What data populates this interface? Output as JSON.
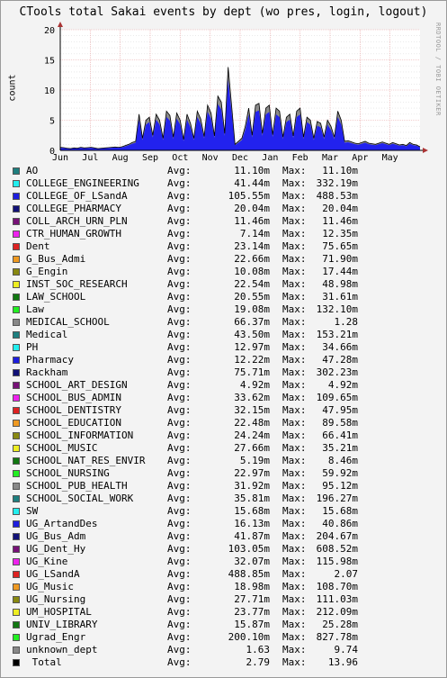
{
  "title": "CTools total Sakai events by dept (wo pres, login, logout)",
  "watermark": "RRDTOOL / TOBI OETIKER",
  "chart_data": {
    "type": "area",
    "title": "CTools total Sakai events by dept (wo pres, login, logout)",
    "ylabel": "count",
    "ylim": [
      0,
      20
    ],
    "yticks": [
      0,
      5,
      10,
      15,
      20
    ],
    "xticks": [
      "Jun",
      "Jul",
      "Aug",
      "Sep",
      "Oct",
      "Nov",
      "Dec",
      "Jan",
      "Feb",
      "Mar",
      "Apr",
      "May"
    ],
    "grid": true,
    "stacked": true,
    "series": [
      {
        "name": "MEDICAL_SCHOOL",
        "color": "#8a8a8a",
        "role": "gray stacked top",
        "profile": [
          0.5,
          0.45,
          0.35,
          0.3,
          0.4,
          0.35,
          0.5,
          0.4,
          0.45,
          0.5,
          0.4,
          0.3,
          0.35,
          0.4,
          0.45,
          0.5,
          0.55,
          0.5,
          0.6,
          0.8,
          1.0,
          1.3,
          1.5,
          6.0,
          2.0,
          5.0,
          5.5,
          2.5,
          6.0,
          5.0,
          2.0,
          6.5,
          5.8,
          2.2,
          6.2,
          5.0,
          1.8,
          6.0,
          4.5,
          2.0,
          6.5,
          5.2,
          2.3,
          7.5,
          6.2,
          2.4,
          9.0,
          8.0,
          2.8,
          13.8,
          7.5,
          1.0,
          1.5,
          2.0,
          4.0,
          7.0,
          2.5,
          7.5,
          7.8,
          2.8,
          7.0,
          7.5,
          2.6,
          7.0,
          6.5,
          2.2,
          5.5,
          6.0,
          2.4,
          6.5,
          7.0,
          2.2,
          5.5,
          5.0,
          2.0,
          4.8,
          4.5,
          2.2,
          5.0,
          4.0,
          2.2,
          6.5,
          5.0,
          1.5,
          1.6,
          1.4,
          1.2,
          1.1,
          1.3,
          1.5,
          1.2,
          1.1,
          1.0,
          1.2,
          1.4,
          1.2,
          1.0,
          1.3,
          1.1,
          0.9,
          1.0,
          0.8,
          1.3,
          1.0,
          0.9,
          0.6
        ]
      },
      {
        "name": "Medical",
        "color": "#1e7f7f",
        "role": "teal band",
        "fraction": 0.25
      },
      {
        "name": "Law",
        "color": "#22dd22",
        "role": "green band",
        "fraction": 0.45
      },
      {
        "name": "UG_LSandA",
        "color": "#ee2222",
        "role": "red band",
        "fraction": 0.65
      },
      {
        "name": "COLLEGE_OF_LSandA",
        "color": "#2222ee",
        "role": "blue band",
        "fraction": 0.85
      }
    ]
  },
  "legend": [
    {
      "name": "AO",
      "color": "#1e7f7f",
      "avg_label": "Avg:",
      "avg": "11.10m",
      "max_label": "Max:",
      "max": "11.10m"
    },
    {
      "name": "COLLEGE_ENGINEERING",
      "color": "#22eeee",
      "avg_label": "Avg:",
      "avg": "41.44m",
      "max_label": "Max:",
      "max": "332.19m"
    },
    {
      "name": "COLLEGE_OF_LSandA",
      "color": "#1e1ede",
      "avg_label": "Avg:",
      "avg": "105.55m",
      "max_label": "Max:",
      "max": "488.53m"
    },
    {
      "name": "COLLEGE_PHARMACY",
      "color": "#111177",
      "avg_label": "Avg:",
      "avg": "20.04m",
      "max_label": "Max:",
      "max": "20.04m"
    },
    {
      "name": "COLL_ARCH_URN_PLN",
      "color": "#771177",
      "avg_label": "Avg:",
      "avg": "11.46m",
      "max_label": "Max:",
      "max": "11.46m"
    },
    {
      "name": "CTR_HUMAN_GROWTH",
      "color": "#ee22ee",
      "avg_label": "Avg:",
      "avg": "7.14m",
      "max_label": "Max:",
      "max": "12.35m"
    },
    {
      "name": "Dent",
      "color": "#dd2222",
      "avg_label": "Avg:",
      "avg": "23.14m",
      "max_label": "Max:",
      "max": "75.65m"
    },
    {
      "name": "G_Bus_Admi",
      "color": "#ee9922",
      "avg_label": "Avg:",
      "avg": "22.66m",
      "max_label": "Max:",
      "max": "71.90m"
    },
    {
      "name": "G_Engin",
      "color": "#888811",
      "avg_label": "Avg:",
      "avg": "10.08m",
      "max_label": "Max:",
      "max": "17.44m"
    },
    {
      "name": "INST_SOC_RESEARCH",
      "color": "#eeee22",
      "avg_label": "Avg:",
      "avg": "22.54m",
      "max_label": "Max:",
      "max": "48.98m"
    },
    {
      "name": "LAW_SCHOOL",
      "color": "#117711",
      "avg_label": "Avg:",
      "avg": "20.55m",
      "max_label": "Max:",
      "max": "31.61m"
    },
    {
      "name": "Law",
      "color": "#22ee22",
      "avg_label": "Avg:",
      "avg": "19.08m",
      "max_label": "Max:",
      "max": "132.10m"
    },
    {
      "name": "MEDICAL_SCHOOL",
      "color": "#888888",
      "avg_label": "Avg:",
      "avg": "66.37m",
      "max_label": "Max:",
      "max": "1.28"
    },
    {
      "name": "Medical",
      "color": "#1e7f7f",
      "avg_label": "Avg:",
      "avg": "43.50m",
      "max_label": "Max:",
      "max": "153.21m"
    },
    {
      "name": "PH",
      "color": "#22eeee",
      "avg_label": "Avg:",
      "avg": "12.97m",
      "max_label": "Max:",
      "max": "34.66m"
    },
    {
      "name": "Pharmacy",
      "color": "#1e1ede",
      "avg_label": "Avg:",
      "avg": "12.22m",
      "max_label": "Max:",
      "max": "47.28m"
    },
    {
      "name": "Rackham",
      "color": "#111177",
      "avg_label": "Avg:",
      "avg": "75.71m",
      "max_label": "Max:",
      "max": "302.23m"
    },
    {
      "name": "SCHOOL_ART_DESIGN",
      "color": "#771177",
      "avg_label": "Avg:",
      "avg": "4.92m",
      "max_label": "Max:",
      "max": "4.92m"
    },
    {
      "name": "SCHOOL_BUS_ADMIN",
      "color": "#ee22ee",
      "avg_label": "Avg:",
      "avg": "33.62m",
      "max_label": "Max:",
      "max": "109.65m"
    },
    {
      "name": "SCHOOL_DENTISTRY",
      "color": "#dd2222",
      "avg_label": "Avg:",
      "avg": "32.15m",
      "max_label": "Max:",
      "max": "47.95m"
    },
    {
      "name": "SCHOOL_EDUCATION",
      "color": "#ee9922",
      "avg_label": "Avg:",
      "avg": "22.48m",
      "max_label": "Max:",
      "max": "89.58m"
    },
    {
      "name": "SCHOOL_INFORMATION",
      "color": "#888811",
      "avg_label": "Avg:",
      "avg": "24.24m",
      "max_label": "Max:",
      "max": "66.41m"
    },
    {
      "name": "SCHOOL_MUSIC",
      "color": "#eeee22",
      "avg_label": "Avg:",
      "avg": "27.66m",
      "max_label": "Max:",
      "max": "35.21m"
    },
    {
      "name": "SCHOOL_NAT_RES_ENVIR",
      "color": "#117711",
      "avg_label": "Avg:",
      "avg": "5.19m",
      "max_label": "Max:",
      "max": "8.46m"
    },
    {
      "name": "SCHOOL_NURSING",
      "color": "#22ee22",
      "avg_label": "Avg:",
      "avg": "22.97m",
      "max_label": "Max:",
      "max": "59.92m"
    },
    {
      "name": "SCHOOL_PUB_HEALTH",
      "color": "#888888",
      "avg_label": "Avg:",
      "avg": "31.92m",
      "max_label": "Max:",
      "max": "95.12m"
    },
    {
      "name": "SCHOOL_SOCIAL_WORK",
      "color": "#1e7f7f",
      "avg_label": "Avg:",
      "avg": "35.81m",
      "max_label": "Max:",
      "max": "196.27m"
    },
    {
      "name": "SW",
      "color": "#22eeee",
      "avg_label": "Avg:",
      "avg": "15.68m",
      "max_label": "Max:",
      "max": "15.68m"
    },
    {
      "name": "UG_ArtandDes",
      "color": "#1e1ede",
      "avg_label": "Avg:",
      "avg": "16.13m",
      "max_label": "Max:",
      "max": "40.86m"
    },
    {
      "name": "UG_Bus_Adm",
      "color": "#111177",
      "avg_label": "Avg:",
      "avg": "41.87m",
      "max_label": "Max:",
      "max": "204.67m"
    },
    {
      "name": "UG_Dent_Hy",
      "color": "#771177",
      "avg_label": "Avg:",
      "avg": "103.05m",
      "max_label": "Max:",
      "max": "608.52m"
    },
    {
      "name": "UG_Kine",
      "color": "#ee22ee",
      "avg_label": "Avg:",
      "avg": "32.07m",
      "max_label": "Max:",
      "max": "115.98m"
    },
    {
      "name": "UG_LSandA",
      "color": "#dd2222",
      "avg_label": "Avg:",
      "avg": "488.85m",
      "max_label": "Max:",
      "max": "2.07"
    },
    {
      "name": "UG_Music",
      "color": "#ee9922",
      "avg_label": "Avg:",
      "avg": "18.98m",
      "max_label": "Max:",
      "max": "108.70m"
    },
    {
      "name": "UG_Nursing",
      "color": "#888811",
      "avg_label": "Avg:",
      "avg": "27.71m",
      "max_label": "Max:",
      "max": "111.03m"
    },
    {
      "name": "UM_HOSPITAL",
      "color": "#eeee22",
      "avg_label": "Avg:",
      "avg": "23.77m",
      "max_label": "Max:",
      "max": "212.09m"
    },
    {
      "name": "UNIV_LIBRARY",
      "color": "#117711",
      "avg_label": "Avg:",
      "avg": "15.87m",
      "max_label": "Max:",
      "max": "25.28m"
    },
    {
      "name": "Ugrad_Engr",
      "color": "#22ee22",
      "avg_label": "Avg:",
      "avg": "200.10m",
      "max_label": "Max:",
      "max": "827.78m"
    },
    {
      "name": "unknown_dept",
      "color": "#888888",
      "avg_label": "Avg:",
      "avg": "1.63",
      "max_label": "Max:",
      "max": "9.74"
    },
    {
      "name": " Total",
      "color": "#000000",
      "avg_label": "Avg:",
      "avg": "2.79",
      "max_label": "Max:",
      "max": "13.96"
    }
  ]
}
